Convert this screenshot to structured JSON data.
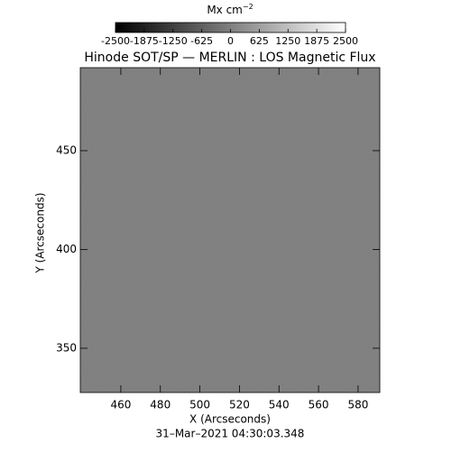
{
  "chart_data": {
    "type": "image",
    "title": "Hinode SOT/SP — MERLIN : LOS Magnetic Flux",
    "xlabel": "X (Arcseconds)",
    "ylabel": "Y (Arcseconds)",
    "date": "31–Mar–2021 04:30:03.348",
    "xlim": [
      439.5,
      591
    ],
    "xticks": [
      460,
      480,
      500,
      520,
      540,
      560,
      580
    ],
    "ylim": [
      327.6,
      492
    ],
    "yticks": [
      350,
      400,
      450
    ],
    "background_color": "#7f7f7f",
    "colorbar": {
      "label": "Mx cm",
      "label_exponent": "−2",
      "clim": [
        -2500,
        2500
      ],
      "ticks": [
        -2500,
        -1875,
        -1250,
        -625,
        0,
        625,
        1250,
        1875,
        2500
      ],
      "colors": [
        "#000000",
        "#ffffff"
      ]
    }
  }
}
